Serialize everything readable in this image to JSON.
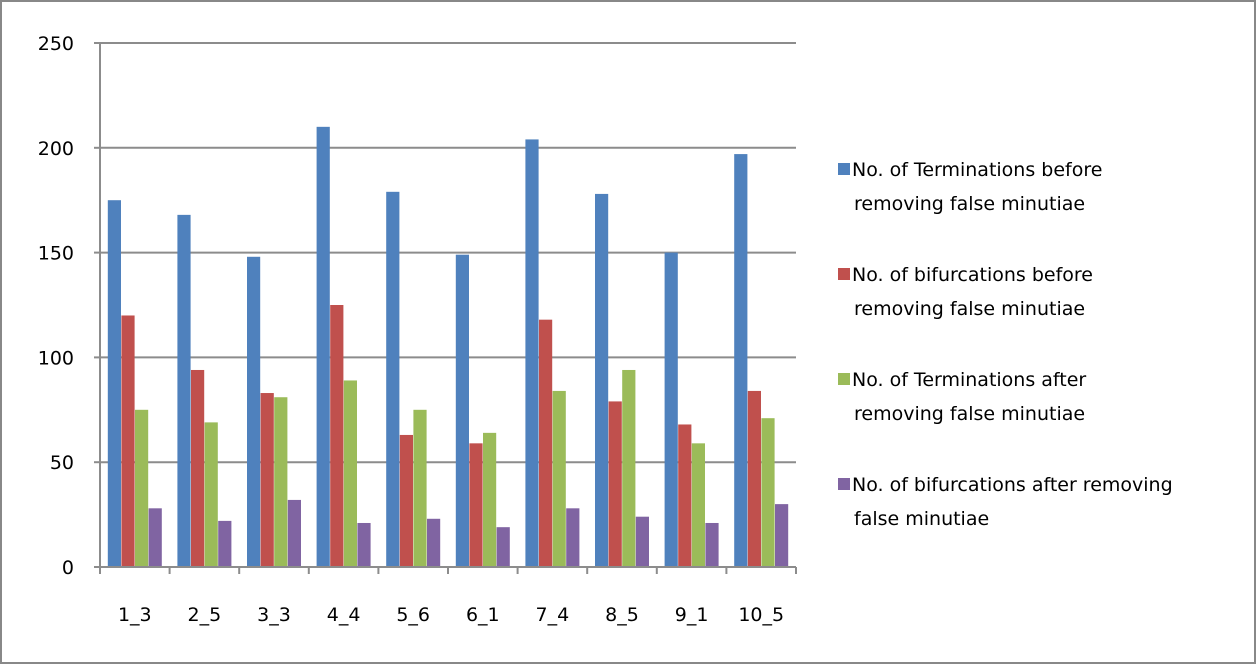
{
  "chart_data": {
    "type": "bar",
    "title": "",
    "xlabel": "",
    "ylabel": "",
    "ylim": [
      0,
      250
    ],
    "yticks": [
      0,
      50,
      100,
      150,
      200,
      250
    ],
    "grid": true,
    "legend_position": "right",
    "categories": [
      "1_3",
      "2_5",
      "3_3",
      "4_4",
      "5_6",
      "6_1",
      "7_4",
      "8_5",
      "9_1",
      "10_5"
    ],
    "series": [
      {
        "name": "No. of Terminations  before removing false minutiae",
        "legend_lines": [
          "No. of Terminations  before",
          "removing false minutiae"
        ],
        "color": "#4F81BD",
        "values": [
          175,
          168,
          148,
          210,
          179,
          149,
          204,
          178,
          150,
          197
        ]
      },
      {
        "name": "No. of bifurcations  before removing false minutiae",
        "legend_lines": [
          "No. of bifurcations  before",
          "removing false minutiae"
        ],
        "color": "#C0504D",
        "values": [
          120,
          94,
          83,
          125,
          63,
          59,
          118,
          79,
          68,
          84
        ]
      },
      {
        "name": "No. of Terminations after removing false minutiae",
        "legend_lines": [
          "No. of Terminations after",
          "removing false minutiae"
        ],
        "color": "#9BBB59",
        "values": [
          75,
          69,
          81,
          89,
          75,
          64,
          84,
          94,
          59,
          71
        ]
      },
      {
        "name": "No. of bifurcations after removing false minutiae",
        "legend_lines": [
          "No. of bifurcations after removing",
          "false minutiae"
        ],
        "color": "#8064A2",
        "values": [
          28,
          22,
          32,
          21,
          23,
          19,
          28,
          24,
          21,
          30
        ]
      }
    ]
  }
}
